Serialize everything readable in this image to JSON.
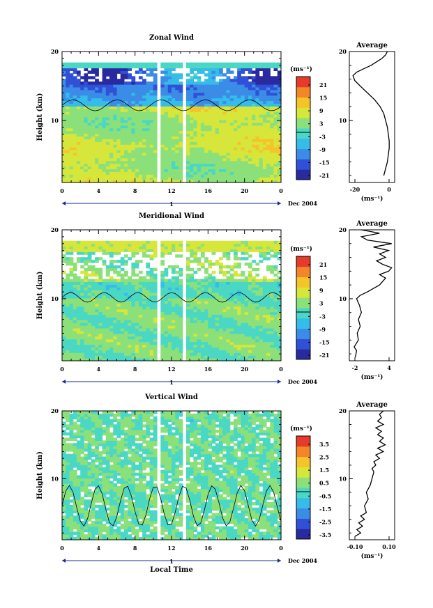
{
  "chart_data": [
    {
      "type": "heatmap",
      "title": "Zonal Wind",
      "ylabel": "Height (km)",
      "xlabel": "",
      "x_ticks": [
        "0",
        "4",
        "8",
        "12",
        "16",
        "20",
        "0"
      ],
      "y_ticks": [
        "20",
        "10"
      ],
      "xlim": [
        0,
        24
      ],
      "ylim": [
        1,
        20
      ],
      "date_day": "1",
      "date_label": "Dec 2004",
      "colorbar": {
        "unit": "(ms⁻¹)",
        "ticks": [
          "21",
          "15",
          "9",
          "3",
          "-3",
          "-9",
          "-15",
          "-21"
        ],
        "range": [
          -24,
          24
        ]
      },
      "profile": {
        "title": "Average",
        "unit": "(ms⁻¹)",
        "x_ticks": [
          "-20",
          "0"
        ],
        "y_ticks": [
          "20",
          "10"
        ],
        "xlim": [
          -20,
          5
        ],
        "points": [
          [
            -1,
            2
          ],
          [
            0,
            3
          ],
          [
            1,
            4
          ],
          [
            1.5,
            5
          ],
          [
            2,
            6
          ],
          [
            2,
            7
          ],
          [
            1.5,
            8
          ],
          [
            1,
            9
          ],
          [
            0,
            10
          ],
          [
            -1,
            11
          ],
          [
            -3,
            12
          ],
          [
            -6,
            13
          ],
          [
            -10,
            14
          ],
          [
            -14,
            15
          ],
          [
            -17,
            15.8
          ],
          [
            -18,
            16.5
          ],
          [
            -16,
            17
          ],
          [
            -12,
            17.5
          ],
          [
            -8,
            18
          ],
          [
            -5,
            18.5
          ],
          [
            -2,
            19
          ],
          [
            0,
            19.5
          ],
          [
            1,
            20
          ]
        ]
      }
    },
    {
      "type": "heatmap",
      "title": "Meridional Wind",
      "ylabel": "Height (km)",
      "xlabel": "",
      "x_ticks": [
        "0",
        "4",
        "8",
        "12",
        "16",
        "20",
        "0"
      ],
      "y_ticks": [
        "20",
        "10"
      ],
      "xlim": [
        0,
        24
      ],
      "ylim": [
        1,
        20
      ],
      "date_day": "1",
      "date_label": "Dec 2004",
      "colorbar": {
        "unit": "(ms⁻¹)",
        "ticks": [
          "21",
          "15",
          "9",
          "3",
          "-3",
          "-9",
          "-15",
          "-21"
        ],
        "range": [
          -24,
          24
        ]
      },
      "profile": {
        "title": "Average",
        "unit": "(ms⁻¹)",
        "x_ticks": [
          "-2",
          "4"
        ],
        "y_ticks": [
          "20",
          "10"
        ],
        "xlim": [
          -3,
          4.5
        ],
        "points": [
          [
            -2,
            1.5
          ],
          [
            -1.8,
            2.5
          ],
          [
            -2.2,
            3
          ],
          [
            -1.5,
            4
          ],
          [
            -1.7,
            5
          ],
          [
            -1.2,
            6
          ],
          [
            -1.5,
            7
          ],
          [
            -1,
            8
          ],
          [
            -1.3,
            9
          ],
          [
            -1.8,
            10
          ],
          [
            -1.2,
            10.5
          ],
          [
            0,
            11
          ],
          [
            1,
            11.5
          ],
          [
            2,
            12
          ],
          [
            2.5,
            12.5
          ],
          [
            3,
            13
          ],
          [
            2,
            13.5
          ],
          [
            3.5,
            14
          ],
          [
            4,
            14.5
          ],
          [
            2.5,
            15
          ],
          [
            1.5,
            15.5
          ],
          [
            3,
            16
          ],
          [
            2,
            16.5
          ],
          [
            3.5,
            17
          ],
          [
            1,
            17.5
          ],
          [
            4,
            18
          ],
          [
            0,
            18.5
          ],
          [
            -1,
            19
          ],
          [
            2,
            19.5
          ],
          [
            -1,
            20
          ]
        ]
      }
    },
    {
      "type": "heatmap",
      "title": "Vertical Wind",
      "ylabel": "Height (km)",
      "xlabel": "Local Time",
      "x_ticks": [
        "0",
        "4",
        "8",
        "12",
        "16",
        "20",
        "0"
      ],
      "y_ticks": [
        "20",
        "10"
      ],
      "xlim": [
        0,
        24
      ],
      "ylim": [
        1,
        20
      ],
      "date_day": "1",
      "date_label": "Dec 2004",
      "colorbar": {
        "unit": "(ms⁻¹)",
        "ticks": [
          "3.5",
          "2.5",
          "1.5",
          "0.5",
          "-0.5",
          "-1.5",
          "-2.5",
          "-3.5"
        ],
        "range": [
          -4,
          4
        ]
      },
      "profile": {
        "title": "Average",
        "unit": "(ms⁻¹)",
        "x_ticks": [
          "-0.10",
          "0.10"
        ],
        "y_ticks": [
          "20",
          "10"
        ],
        "xlim": [
          -0.12,
          0.12
        ],
        "points": [
          [
            -0.09,
            1.5
          ],
          [
            -0.06,
            2
          ],
          [
            -0.08,
            2.5
          ],
          [
            -0.05,
            3
          ],
          [
            -0.07,
            3.5
          ],
          [
            -0.04,
            4
          ],
          [
            -0.06,
            4.5
          ],
          [
            -0.03,
            5
          ],
          [
            -0.04,
            6
          ],
          [
            -0.02,
            7
          ],
          [
            -0.03,
            8
          ],
          [
            -0.01,
            9
          ],
          [
            0,
            10
          ],
          [
            0.01,
            11
          ],
          [
            0.0,
            11.5
          ],
          [
            0.02,
            12
          ],
          [
            0.01,
            12.5
          ],
          [
            0.04,
            13
          ],
          [
            0.02,
            13.5
          ],
          [
            0.06,
            14
          ],
          [
            0.03,
            14.5
          ],
          [
            0.07,
            15
          ],
          [
            0.04,
            15.5
          ],
          [
            0.06,
            16
          ],
          [
            0.03,
            16.5
          ],
          [
            0.05,
            17
          ],
          [
            0.02,
            17.5
          ],
          [
            0.06,
            18
          ],
          [
            0.03,
            18.5
          ],
          [
            0.05,
            19
          ],
          [
            0.04,
            19.5
          ],
          [
            0.06,
            20
          ]
        ]
      }
    }
  ]
}
